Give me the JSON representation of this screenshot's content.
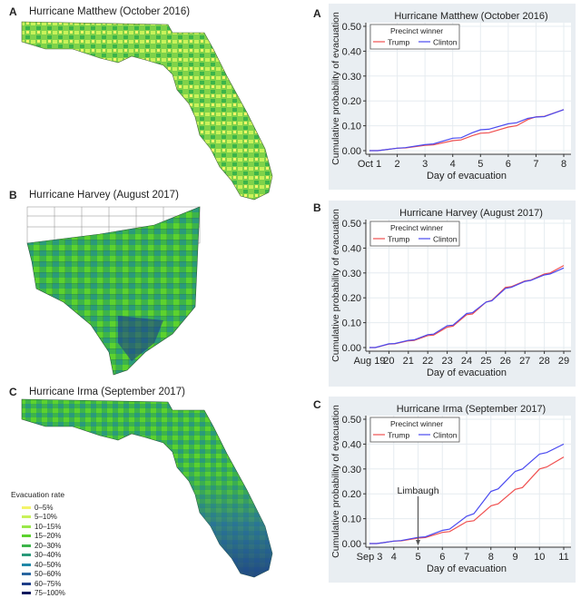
{
  "maps": [
    {
      "label": "A",
      "title": "Hurricane Matthew (October 2016)"
    },
    {
      "label": "B",
      "title": "Hurricane Harvey (August 2017)"
    },
    {
      "label": "C",
      "title": "Hurricane Irma (September 2017)"
    }
  ],
  "map_legend": {
    "title": "Evacuation rate",
    "items": [
      {
        "label": "0–5%",
        "color": "#f4f46a"
      },
      {
        "label": "5–10%",
        "color": "#c8f25a"
      },
      {
        "label": "10–15%",
        "color": "#9ae84a"
      },
      {
        "label": "15–20%",
        "color": "#5cd22e"
      },
      {
        "label": "20–30%",
        "color": "#3cb44a"
      },
      {
        "label": "30–40%",
        "color": "#2a9a7a"
      },
      {
        "label": "40–50%",
        "color": "#2088a8"
      },
      {
        "label": "50–60%",
        "color": "#2a66a0"
      },
      {
        "label": "60–75%",
        "color": "#1e3e88"
      },
      {
        "label": "75–100%",
        "color": "#0c1a5e"
      }
    ]
  },
  "chart_data": [
    {
      "label": "A",
      "type": "line",
      "title": "Hurricane Matthew (October 2016)",
      "xlabel": "Day of evacuation",
      "ylabel": "Cumulative probability of evacuation",
      "xticks": [
        {
          "v": 1,
          "t": "Oct 1"
        },
        {
          "v": 2,
          "t": "2"
        },
        {
          "v": 3,
          "t": "3"
        },
        {
          "v": 4,
          "t": "4"
        },
        {
          "v": 5,
          "t": "5"
        },
        {
          "v": 6,
          "t": "6"
        },
        {
          "v": 7,
          "t": "7"
        },
        {
          "v": 8,
          "t": "8"
        }
      ],
      "xlim": [
        1,
        8
      ],
      "ylim": [
        0,
        0.5
      ],
      "yticks": [
        "0.00",
        "0.10",
        "0.20",
        "0.30",
        "0.40",
        "0.50"
      ],
      "grid": true,
      "legend_title": "Precinct winner",
      "legend_position": "top-left",
      "series": [
        {
          "name": "Trump",
          "color": "#f05050",
          "x": [
            1,
            1.3,
            2,
            2.3,
            3,
            3.3,
            4,
            4.3,
            4.7,
            5,
            5.3,
            6,
            6.3,
            6.7,
            7,
            7.3,
            8
          ],
          "y": [
            0,
            0,
            0.01,
            0.011,
            0.021,
            0.023,
            0.04,
            0.043,
            0.06,
            0.07,
            0.072,
            0.095,
            0.1,
            0.125,
            0.136,
            0.138,
            0.165
          ]
        },
        {
          "name": "Clinton",
          "color": "#4a4af0",
          "x": [
            1,
            1.3,
            2,
            2.3,
            3,
            3.3,
            4,
            4.3,
            4.7,
            5,
            5.3,
            6,
            6.3,
            6.7,
            7,
            7.3,
            8
          ],
          "y": [
            0,
            0,
            0.01,
            0.012,
            0.024,
            0.027,
            0.05,
            0.052,
            0.072,
            0.084,
            0.086,
            0.108,
            0.112,
            0.13,
            0.135,
            0.137,
            0.165
          ]
        }
      ]
    },
    {
      "label": "B",
      "type": "line",
      "title": "Hurricane Harvey (August 2017)",
      "xlabel": "Day of evacuation",
      "ylabel": "Cumulative probability of evacuation",
      "xticks": [
        {
          "v": 19,
          "t": "Aug 19"
        },
        {
          "v": 20,
          "t": "20"
        },
        {
          "v": 21,
          "t": "21"
        },
        {
          "v": 22,
          "t": "22"
        },
        {
          "v": 23,
          "t": "23"
        },
        {
          "v": 24,
          "t": "24"
        },
        {
          "v": 25,
          "t": "25"
        },
        {
          "v": 26,
          "t": "26"
        },
        {
          "v": 27,
          "t": "27"
        },
        {
          "v": 28,
          "t": "28"
        },
        {
          "v": 29,
          "t": "29"
        }
      ],
      "xlim": [
        19,
        29
      ],
      "ylim": [
        0,
        0.5
      ],
      "yticks": [
        "0.00",
        "0.10",
        "0.20",
        "0.30",
        "0.40",
        "0.50"
      ],
      "grid": true,
      "legend_title": "Precinct winner",
      "legend_position": "top-left",
      "series": [
        {
          "name": "Trump",
          "color": "#f05050",
          "x": [
            19,
            19.3,
            20,
            20.3,
            21,
            21.3,
            22,
            22.3,
            23,
            23.3,
            24,
            24.3,
            25,
            25.3,
            26,
            26.3,
            27,
            27.3,
            28,
            28.3,
            29
          ],
          "y": [
            0,
            0,
            0.014,
            0.015,
            0.027,
            0.029,
            0.048,
            0.05,
            0.082,
            0.086,
            0.132,
            0.135,
            0.183,
            0.19,
            0.242,
            0.245,
            0.268,
            0.271,
            0.296,
            0.3,
            0.33
          ]
        },
        {
          "name": "Clinton",
          "color": "#4a4af0",
          "x": [
            19,
            19.3,
            20,
            20.3,
            21,
            21.3,
            22,
            22.3,
            23,
            23.3,
            24,
            24.3,
            25,
            25.3,
            26,
            26.3,
            27,
            27.3,
            28,
            28.3,
            29
          ],
          "y": [
            0,
            0,
            0.015,
            0.016,
            0.029,
            0.031,
            0.052,
            0.054,
            0.088,
            0.09,
            0.137,
            0.14,
            0.183,
            0.188,
            0.238,
            0.242,
            0.266,
            0.27,
            0.292,
            0.296,
            0.32
          ]
        }
      ]
    },
    {
      "label": "C",
      "type": "line",
      "title": "Hurricane Irma (September 2017)",
      "xlabel": "Day of evacuation",
      "ylabel": "Cumulative probability of evacuation",
      "xticks": [
        {
          "v": 3,
          "t": "Sep 3"
        },
        {
          "v": 4,
          "t": "4"
        },
        {
          "v": 5,
          "t": "5"
        },
        {
          "v": 6,
          "t": "6"
        },
        {
          "v": 7,
          "t": "7"
        },
        {
          "v": 8,
          "t": "8"
        },
        {
          "v": 9,
          "t": "9"
        },
        {
          "v": 10,
          "t": "10"
        },
        {
          "v": 11,
          "t": "11"
        }
      ],
      "xlim": [
        3,
        11
      ],
      "ylim": [
        0,
        0.5
      ],
      "yticks": [
        "0.00",
        "0.10",
        "0.20",
        "0.30",
        "0.40",
        "0.50"
      ],
      "grid": true,
      "legend_title": "Precinct winner",
      "legend_position": "top-left",
      "annotation": {
        "text": "Limbaugh",
        "x": 5
      },
      "series": [
        {
          "name": "Trump",
          "color": "#f05050",
          "x": [
            3,
            3.3,
            4,
            4.3,
            5,
            5.3,
            6,
            6.3,
            7,
            7.3,
            8,
            8.3,
            9,
            9.3,
            10,
            10.3,
            11
          ],
          "y": [
            0,
            0,
            0.01,
            0.011,
            0.022,
            0.024,
            0.045,
            0.048,
            0.088,
            0.092,
            0.152,
            0.16,
            0.218,
            0.225,
            0.3,
            0.308,
            0.348
          ]
        },
        {
          "name": "Clinton",
          "color": "#4a4af0",
          "x": [
            3,
            3.3,
            4,
            4.3,
            5,
            5.3,
            6,
            6.3,
            7,
            7.3,
            8,
            8.3,
            9,
            9.3,
            10,
            10.3,
            11
          ],
          "y": [
            0,
            0,
            0.01,
            0.012,
            0.025,
            0.027,
            0.053,
            0.058,
            0.11,
            0.12,
            0.21,
            0.22,
            0.29,
            0.3,
            0.36,
            0.366,
            0.4
          ]
        }
      ]
    }
  ]
}
